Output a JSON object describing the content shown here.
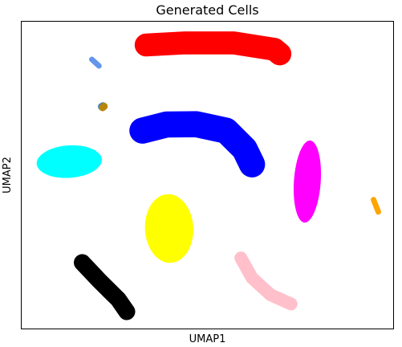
{
  "chart_data": {
    "type": "scatter",
    "title": "Generated Cells",
    "xlabel": "UMAP1",
    "ylabel": "UMAP2",
    "ticks": false,
    "grid": false,
    "legend": "none",
    "xlim": [
      0,
      100
    ],
    "ylim": [
      0,
      100
    ],
    "clusters": [
      {
        "color": "#ff0000",
        "shape": "curve",
        "x": [
          33.5,
          44,
          57,
          68,
          69.5
        ],
        "y": [
          92.4,
          93.1,
          93.1,
          91,
          89.5
        ],
        "thickness": 7.5
      },
      {
        "color": "#0000ff",
        "shape": "curve",
        "x": [
          32.5,
          39,
          47,
          55,
          60,
          62
        ],
        "y": [
          64.5,
          66.5,
          66.6,
          64.5,
          58.5,
          53.5
        ],
        "thickness": 8.5
      },
      {
        "color": "#00ffff",
        "shape": "ellipse",
        "cx": 12.8,
        "cy": 54.4,
        "rx": 8.8,
        "ry": 5.3,
        "angle": -4
      },
      {
        "color": "#ffff00",
        "shape": "ellipse",
        "cx": 39.7,
        "cy": 32.6,
        "rx": 6.5,
        "ry": 11.2,
        "angle": -3
      },
      {
        "color": "#ff00ff",
        "shape": "ellipse",
        "cx": 76.9,
        "cy": 47.9,
        "rx": 3.6,
        "ry": 13.4,
        "angle": 4
      },
      {
        "color": "#000000",
        "shape": "curve",
        "x": [
          16.3,
          21,
          26,
          28.3
        ],
        "y": [
          21.5,
          15.5,
          9.5,
          5.5
        ],
        "thickness": 5.5
      },
      {
        "color": "#ffc0cb",
        "shape": "curve",
        "x": [
          59,
          62,
          67,
          72.5
        ],
        "y": [
          23,
          16.5,
          11,
          8
        ],
        "thickness": 4.2
      },
      {
        "color": "#ffa500",
        "shape": "curve",
        "x": [
          94.7,
          96
        ],
        "y": [
          42,
          38
        ],
        "thickness": 1.8
      },
      {
        "color": "#6495ed",
        "shape": "curve",
        "x": [
          18.9,
          20.8
        ],
        "y": [
          87.7,
          85.6
        ],
        "thickness": 1.8
      },
      {
        "color": "#4682b4",
        "shape": "dots",
        "x": [
          21.5,
          21.9
        ],
        "y": [
          72.3,
          72.6
        ]
      },
      {
        "color": "#b8860b",
        "shape": "dots",
        "x": [
          22.2,
          21.8
        ],
        "y": [
          72.4,
          72.0
        ]
      }
    ]
  }
}
